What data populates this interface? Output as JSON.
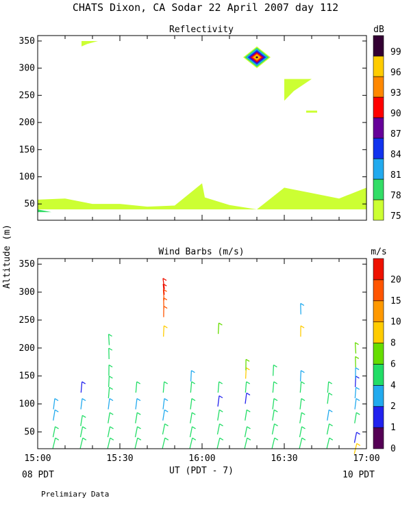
{
  "title": "CHATS Dixon, CA  Sodar  22 April 2007  day 112",
  "footnote": "Prelimiary Data",
  "xlabel": "UT  (PDT - 7)",
  "ylabel": "Altitude (m)",
  "x_ticks": [
    "15:00",
    "15:30",
    "16:00",
    "16:30",
    "17:00"
  ],
  "pdt_left": "08 PDT",
  "pdt_right": "10 PDT",
  "chart_data": [
    {
      "type": "area",
      "title": "Reflectivity",
      "unit": "dB",
      "ylim": [
        20,
        360
      ],
      "yticks": [
        50,
        100,
        150,
        200,
        250,
        300,
        350
      ],
      "xlim": [
        "15:00",
        "17:00"
      ],
      "colorbar": {
        "levels": [
          75,
          78,
          81,
          84,
          87,
          90,
          93,
          96,
          99
        ],
        "colors": [
          "#ccff33",
          "#33dd66",
          "#22aaee",
          "#1133ee",
          "#660099",
          "#ff0000",
          "#ff8800",
          "#ffcc00",
          "#330033"
        ]
      },
      "regions": [
        {
          "level": 75,
          "description": "surface layer top",
          "x": [
            "15:00",
            "15:10",
            "15:20",
            "15:30",
            "15:40",
            "15:50",
            "16:00",
            "16:01",
            "16:10",
            "16:20",
            "16:30",
            "16:40",
            "16:50",
            "17:00"
          ],
          "y": [
            58,
            60,
            50,
            50,
            45,
            47,
            88,
            62,
            48,
            40,
            80,
            70,
            60,
            80
          ]
        },
        {
          "level": 78,
          "description": "near ground 15:00",
          "x": [
            "15:00",
            "15:05"
          ],
          "y": [
            40,
            35
          ]
        },
        {
          "level": 75,
          "description": "patch",
          "x": [
            "15:16",
            "15:22"
          ],
          "y": [
            340,
            350
          ]
        },
        {
          "level": 75,
          "description": "patch",
          "x": [
            "16:30",
            "16:40"
          ],
          "y": [
            240,
            280
          ]
        },
        {
          "level": 75,
          "description": "patch",
          "x": [
            "16:38",
            "16:42"
          ],
          "y": [
            220,
            220
          ]
        },
        {
          "level": 99,
          "description": "strong echo core",
          "x": [
            "16:13",
            "16:23"
          ],
          "y": [
            300,
            340
          ],
          "center": [
            "16:20",
            320
          ]
        }
      ]
    },
    {
      "type": "scatter",
      "title": "Wind Barbs (m/s)",
      "unit": "m/s",
      "ylim": [
        20,
        360
      ],
      "yticks": [
        50,
        100,
        150,
        200,
        250,
        300,
        350
      ],
      "xlim": [
        "15:00",
        "17:00"
      ],
      "colorbar": {
        "levels": [
          0,
          1,
          2,
          4,
          6,
          8,
          10,
          15,
          20
        ],
        "colors": [
          "#550055",
          "#2222ee",
          "#22aaee",
          "#22dd66",
          "#66dd00",
          "#ffcc00",
          "#ff9900",
          "#ff5500",
          "#ee1100"
        ]
      },
      "barbs": [
        {
          "t": "15:06",
          "z": [
            30,
            50,
            80,
            100
          ],
          "s": [
            4,
            4,
            3,
            2
          ]
        },
        {
          "t": "15:16",
          "z": [
            30,
            50,
            70,
            100,
            130
          ],
          "s": [
            4,
            4,
            4,
            3,
            1
          ]
        },
        {
          "t": "15:26",
          "z": [
            30,
            50,
            75,
            100,
            120,
            140,
            160,
            190,
            215
          ],
          "s": [
            4,
            4,
            4,
            3,
            4,
            5,
            5,
            4,
            4
          ]
        },
        {
          "t": "15:36",
          "z": [
            30,
            50,
            75,
            100,
            130
          ],
          "s": [
            4,
            4,
            4,
            3,
            4
          ]
        },
        {
          "t": "15:46",
          "z": [
            30,
            55,
            80,
            100,
            130,
            230,
            265,
            280,
            295,
            305,
            315
          ],
          "s": [
            4,
            5,
            3,
            3,
            4,
            8,
            15,
            15,
            18,
            20,
            20
          ]
        },
        {
          "t": "15:56",
          "z": [
            30,
            50,
            75,
            100,
            130,
            150
          ],
          "s": [
            4,
            4,
            4,
            5,
            4,
            3
          ]
        },
        {
          "t": "16:06",
          "z": [
            30,
            55,
            80,
            105,
            130,
            235
          ],
          "s": [
            4,
            4,
            5,
            1,
            4,
            6
          ]
        },
        {
          "t": "16:16",
          "z": [
            30,
            50,
            80,
            110,
            130,
            155,
            170
          ],
          "s": [
            4,
            4,
            5,
            1,
            4,
            8,
            6
          ]
        },
        {
          "t": "16:26",
          "z": [
            30,
            55,
            80,
            100,
            130,
            160
          ],
          "s": [
            4,
            4,
            5,
            5,
            4,
            4
          ]
        },
        {
          "t": "16:36",
          "z": [
            30,
            50,
            75,
            100,
            130,
            150,
            230,
            270
          ],
          "s": [
            4,
            4,
            4,
            4,
            4,
            3,
            8,
            2
          ]
        },
        {
          "t": "16:46",
          "z": [
            30,
            55,
            80,
            110,
            130
          ],
          "s": [
            4,
            4,
            3,
            4,
            4
          ]
        },
        {
          "t": "16:56",
          "z": [
            20,
            40,
            75,
            100,
            120,
            140,
            155,
            175,
            200
          ],
          "s": [
            8,
            1,
            4,
            3,
            2,
            1,
            2,
            6,
            6
          ]
        }
      ]
    }
  ]
}
